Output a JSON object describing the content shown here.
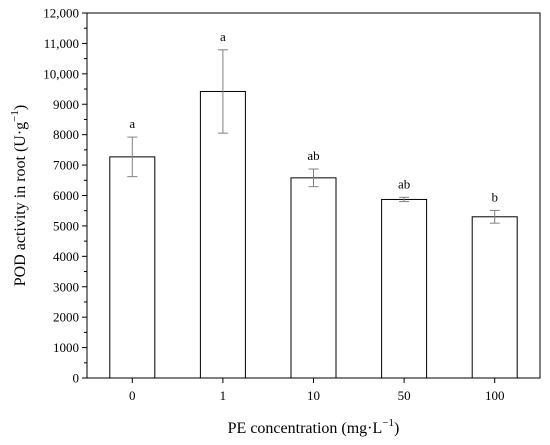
{
  "chart_data": {
    "type": "bar",
    "categories": [
      "0",
      "1",
      "10",
      "50",
      "100"
    ],
    "values": [
      7270,
      9420,
      6580,
      5870,
      5300
    ],
    "errors": [
      650,
      1370,
      290,
      70,
      210
    ],
    "significance": [
      "a",
      "a",
      "ab",
      "ab",
      "b"
    ],
    "xlabel_main": "PE  concentration (mg·L",
    "xlabel_sup": "−1",
    "xlabel_end": ")",
    "ylabel_main": "POD activity in root (U·g",
    "ylabel_sup": "−1",
    "ylabel_end": ")",
    "ylim": [
      0,
      12000
    ],
    "yticks": [
      0,
      1000,
      2000,
      3000,
      4000,
      5000,
      6000,
      7000,
      8000,
      9000,
      10000,
      11000,
      12000
    ],
    "ytick_labels": [
      "0",
      "1000",
      "2000",
      "3000",
      "4000",
      "5000",
      "6000",
      "7000",
      "8000",
      "9000",
      "10,000",
      "11,000",
      "12,000"
    ],
    "grid": false,
    "bar_fill": "#ffffff",
    "bar_stroke": "#000000",
    "error_color": "#808080"
  }
}
